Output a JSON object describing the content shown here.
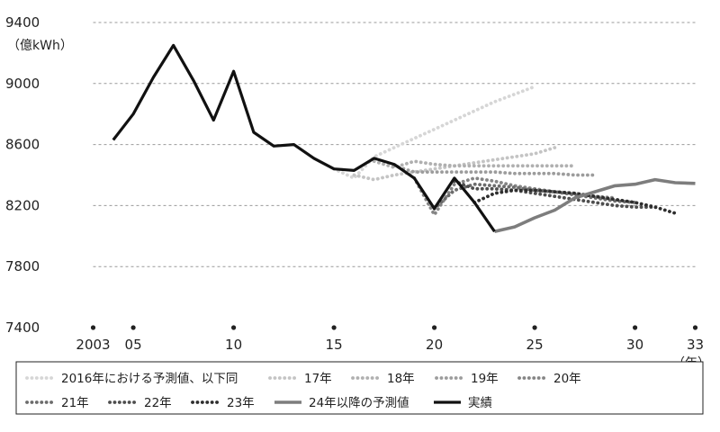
{
  "chart_data": {
    "type": "line",
    "ylabel": "（億kWh）",
    "xunit": "（年）",
    "ylim": [
      7400,
      9400
    ],
    "yticks": [
      7400,
      7800,
      8200,
      8600,
      9000,
      9400
    ],
    "xlim": [
      2003,
      2033
    ],
    "xticks": [
      {
        "x": 2003,
        "label": "2003"
      },
      {
        "x": 2005,
        "label": "05"
      },
      {
        "x": 2010,
        "label": "10"
      },
      {
        "x": 2015,
        "label": "15"
      },
      {
        "x": 2020,
        "label": "20"
      },
      {
        "x": 2025,
        "label": "25"
      },
      {
        "x": 2030,
        "label": "30"
      },
      {
        "x": 2033,
        "label": "33"
      }
    ],
    "grid": true,
    "legend_position": "bottom",
    "series": [
      {
        "name": "2016年における予測値、以下同",
        "style": "dotted",
        "color": "#d6d6d6",
        "points": [
          [
            2015,
            8440
          ],
          [
            2016,
            8380
          ],
          [
            2017,
            8520
          ],
          [
            2018,
            8580
          ],
          [
            2019,
            8640
          ],
          [
            2020,
            8700
          ],
          [
            2021,
            8760
          ],
          [
            2022,
            8820
          ],
          [
            2023,
            8880
          ],
          [
            2024,
            8930
          ],
          [
            2025,
            8980
          ]
        ]
      },
      {
        "name": "17年",
        "style": "dotted",
        "color": "#c4c4c4",
        "points": [
          [
            2016,
            8400
          ],
          [
            2017,
            8370
          ],
          [
            2018,
            8400
          ],
          [
            2019,
            8420
          ],
          [
            2020,
            8440
          ],
          [
            2021,
            8460
          ],
          [
            2022,
            8480
          ],
          [
            2023,
            8500
          ],
          [
            2024,
            8520
          ],
          [
            2025,
            8540
          ],
          [
            2026,
            8580
          ]
        ]
      },
      {
        "name": "18年",
        "style": "dotted",
        "color": "#b0b0b0",
        "points": [
          [
            2017,
            8490
          ],
          [
            2018,
            8450
          ],
          [
            2019,
            8490
          ],
          [
            2020,
            8470
          ],
          [
            2021,
            8460
          ],
          [
            2022,
            8460
          ],
          [
            2023,
            8460
          ],
          [
            2024,
            8460
          ],
          [
            2025,
            8460
          ],
          [
            2026,
            8460
          ],
          [
            2027,
            8460
          ]
        ]
      },
      {
        "name": "19年",
        "style": "dotted",
        "color": "#9c9c9c",
        "points": [
          [
            2018,
            8460
          ],
          [
            2019,
            8420
          ],
          [
            2020,
            8420
          ],
          [
            2021,
            8420
          ],
          [
            2022,
            8420
          ],
          [
            2023,
            8420
          ],
          [
            2024,
            8410
          ],
          [
            2025,
            8410
          ],
          [
            2026,
            8410
          ],
          [
            2027,
            8400
          ],
          [
            2028,
            8400
          ]
        ]
      },
      {
        "name": "20年",
        "style": "dotted",
        "color": "#858585",
        "points": [
          [
            2019,
            8380
          ],
          [
            2020,
            8140
          ],
          [
            2021,
            8340
          ],
          [
            2022,
            8380
          ],
          [
            2023,
            8360
          ],
          [
            2024,
            8330
          ],
          [
            2025,
            8310
          ],
          [
            2026,
            8290
          ],
          [
            2027,
            8280
          ],
          [
            2028,
            8260
          ],
          [
            2029,
            8250
          ]
        ]
      },
      {
        "name": "21年",
        "style": "dotted",
        "color": "#6c6c6c",
        "points": [
          [
            2020,
            8180
          ],
          [
            2021,
            8300
          ],
          [
            2022,
            8340
          ],
          [
            2023,
            8330
          ],
          [
            2024,
            8320
          ],
          [
            2025,
            8300
          ],
          [
            2026,
            8290
          ],
          [
            2027,
            8270
          ],
          [
            2028,
            8250
          ],
          [
            2029,
            8230
          ],
          [
            2030,
            8220
          ]
        ]
      },
      {
        "name": "22年",
        "style": "dotted",
        "color": "#4e4e4e",
        "points": [
          [
            2021,
            8360
          ],
          [
            2022,
            8310
          ],
          [
            2023,
            8310
          ],
          [
            2024,
            8300
          ],
          [
            2025,
            8280
          ],
          [
            2026,
            8260
          ],
          [
            2027,
            8240
          ],
          [
            2028,
            8220
          ],
          [
            2029,
            8200
          ],
          [
            2030,
            8190
          ],
          [
            2031,
            8190
          ]
        ]
      },
      {
        "name": "23年",
        "style": "dotted",
        "color": "#2e2e2e",
        "points": [
          [
            2022,
            8220
          ],
          [
            2023,
            8280
          ],
          [
            2024,
            8300
          ],
          [
            2025,
            8300
          ],
          [
            2026,
            8290
          ],
          [
            2027,
            8280
          ],
          [
            2028,
            8260
          ],
          [
            2029,
            8240
          ],
          [
            2030,
            8220
          ],
          [
            2031,
            8190
          ],
          [
            2032,
            8150
          ]
        ]
      },
      {
        "name": "24年以降の予測値",
        "style": "solid",
        "color": "#7d7d7d",
        "points": [
          [
            2023,
            8030
          ],
          [
            2024,
            8060
          ],
          [
            2025,
            8120
          ],
          [
            2026,
            8170
          ],
          [
            2027,
            8250
          ],
          [
            2028,
            8290
          ],
          [
            2029,
            8330
          ],
          [
            2030,
            8340
          ],
          [
            2031,
            8370
          ],
          [
            2032,
            8350
          ],
          [
            2033,
            8345
          ]
        ]
      },
      {
        "name": "実績",
        "style": "solid",
        "color": "#111111",
        "points": [
          [
            2004,
            8630
          ],
          [
            2005,
            8800
          ],
          [
            2006,
            9040
          ],
          [
            2007,
            9250
          ],
          [
            2008,
            9020
          ],
          [
            2009,
            8760
          ],
          [
            2010,
            9080
          ],
          [
            2011,
            8680
          ],
          [
            2012,
            8590
          ],
          [
            2013,
            8600
          ],
          [
            2014,
            8510
          ],
          [
            2015,
            8440
          ],
          [
            2016,
            8430
          ],
          [
            2017,
            8510
          ],
          [
            2018,
            8470
          ],
          [
            2019,
            8380
          ],
          [
            2020,
            8180
          ],
          [
            2021,
            8380
          ],
          [
            2022,
            8220
          ],
          [
            2023,
            8030
          ]
        ]
      }
    ]
  }
}
